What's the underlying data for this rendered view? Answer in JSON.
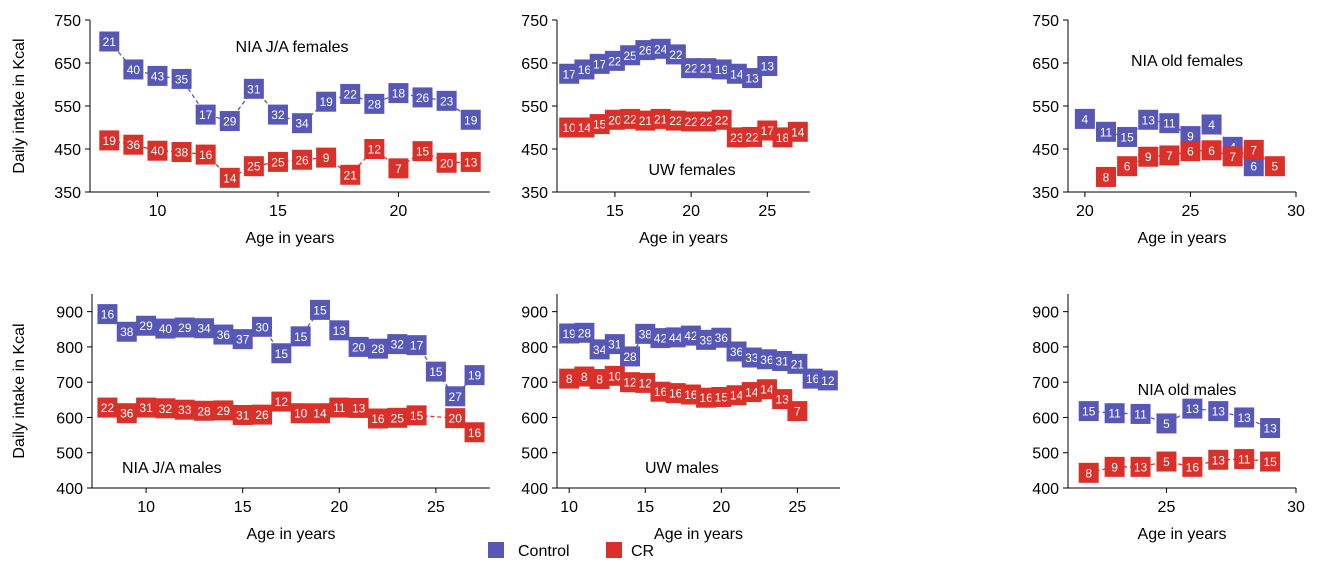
{
  "colors": {
    "control": "#5757b5",
    "cr": "#d9302a",
    "axis": "#000000"
  },
  "legend": {
    "control": "Control",
    "cr": "CR"
  },
  "chart_data": [
    {
      "type": "line",
      "title": "NIA J/A females",
      "xlabel": "Age in years",
      "ylabel": "Daily intake in Kcal",
      "xlim": [
        7.2,
        23.8
      ],
      "ylim": [
        350,
        750
      ],
      "xticks": [
        10,
        15,
        20
      ],
      "yticks": [
        350,
        450,
        550,
        650,
        750
      ],
      "series": [
        {
          "name": "Control",
          "x": [
            8,
            9,
            10,
            11,
            12,
            13,
            14,
            15,
            16,
            17,
            18,
            19,
            20,
            21,
            22,
            23
          ],
          "values": [
            700,
            635,
            620,
            613,
            530,
            515,
            590,
            530,
            510,
            560,
            578,
            555,
            580,
            570,
            562,
            518
          ],
          "labels": [
            "21",
            "40",
            "43",
            "35",
            "17",
            "29",
            "31",
            "32",
            "34",
            "19",
            "22",
            "28",
            "18",
            "26",
            "23",
            "19"
          ]
        },
        {
          "name": "CR",
          "x": [
            8,
            9,
            10,
            11,
            12,
            13,
            14,
            15,
            16,
            17,
            18,
            19,
            20,
            21,
            22,
            23
          ],
          "values": [
            470,
            460,
            446,
            443,
            437,
            383,
            410,
            420,
            425,
            430,
            390,
            450,
            405,
            445,
            418,
            420
          ],
          "labels": [
            "19",
            "36",
            "40",
            "38",
            "16",
            "14",
            "25",
            "25",
            "26",
            "9",
            "21",
            "12",
            "7",
            "15",
            "20",
            "13"
          ]
        }
      ]
    },
    {
      "type": "line",
      "title": "UW females",
      "xlabel": "Age in years",
      "ylabel": "",
      "xlim": [
        11.2,
        27.8
      ],
      "ylim": [
        350,
        750
      ],
      "xticks": [
        15,
        20,
        25
      ],
      "yticks": [
        350,
        450,
        550,
        650,
        750
      ],
      "series": [
        {
          "name": "Control",
          "x": [
            12,
            13,
            14,
            15,
            16,
            17,
            18,
            19,
            20,
            21,
            22,
            23,
            24,
            25
          ],
          "values": [
            625,
            635,
            648,
            655,
            668,
            680,
            683,
            670,
            638,
            638,
            635,
            625,
            615,
            643
          ],
          "labels": [
            "17",
            "16",
            "17",
            "22",
            "25",
            "26",
            "24",
            "22",
            "22",
            "21",
            "19",
            "14",
            "13",
            "13"
          ]
        },
        {
          "name": "CR",
          "x": [
            12,
            13,
            14,
            15,
            16,
            17,
            18,
            19,
            20,
            21,
            22,
            23,
            24,
            25,
            26,
            27
          ],
          "values": [
            500,
            500,
            508,
            518,
            520,
            516,
            520,
            516,
            514,
            514,
            518,
            477,
            478,
            493,
            477,
            490
          ],
          "labels": [
            "10",
            "14",
            "15",
            "20",
            "22",
            "21",
            "21",
            "22",
            "22",
            "22",
            "22",
            "23",
            "22",
            "17",
            "18",
            "14"
          ]
        }
      ]
    },
    {
      "type": "line",
      "title": "NIA old females",
      "xlabel": "Age in years",
      "ylabel": "",
      "xlim": [
        19.2,
        30
      ],
      "ylim": [
        350,
        750
      ],
      "xticks": [
        20,
        25,
        30
      ],
      "yticks": [
        350,
        450,
        550,
        650,
        750
      ],
      "series": [
        {
          "name": "Control",
          "x": [
            20,
            21,
            22,
            23,
            24,
            25,
            26,
            27,
            28
          ],
          "values": [
            520,
            490,
            478,
            518,
            510,
            480,
            507,
            455,
            410
          ],
          "labels": [
            "4",
            "11",
            "15",
            "13",
            "11",
            "9",
            "4",
            "4",
            "6"
          ]
        },
        {
          "name": "CR",
          "x": [
            21,
            22,
            23,
            24,
            25,
            26,
            27,
            28,
            29
          ],
          "values": [
            385,
            410,
            432,
            435,
            445,
            447,
            433,
            448,
            410
          ],
          "labels": [
            "8",
            "6",
            "9",
            "7",
            "6",
            "6",
            "7",
            "7",
            "5"
          ]
        }
      ]
    },
    {
      "type": "line",
      "title": "NIA J/A males",
      "xlabel": "Age in years",
      "ylabel": "Daily intake in Kcal",
      "xlim": [
        7.2,
        27.8
      ],
      "ylim": [
        400,
        950
      ],
      "xticks": [
        10,
        15,
        20,
        25
      ],
      "yticks": [
        400,
        500,
        600,
        700,
        800,
        900
      ],
      "series": [
        {
          "name": "Control",
          "x": [
            8,
            9,
            10,
            11,
            12,
            13,
            14,
            15,
            16,
            17,
            18,
            19,
            20,
            21,
            22,
            23,
            24,
            25,
            26,
            27
          ],
          "values": [
            893,
            843,
            860,
            852,
            855,
            853,
            835,
            822,
            857,
            782,
            830,
            905,
            847,
            800,
            795,
            808,
            805,
            730,
            660,
            720
          ],
          "labels": [
            "16",
            "38",
            "29",
            "40",
            "29",
            "34",
            "36",
            "37",
            "30",
            "15",
            "15",
            "15",
            "13",
            "20",
            "28",
            "32",
            "17",
            "15",
            "27",
            "19"
          ]
        },
        {
          "name": "CR",
          "x": [
            8,
            9,
            10,
            11,
            12,
            13,
            14,
            15,
            16,
            17,
            18,
            19,
            20,
            21,
            22,
            23,
            24,
            25,
            26,
            27
          ],
          "values": [
            628,
            612,
            628,
            626,
            622,
            619,
            620,
            607,
            608,
            645,
            612,
            612,
            628,
            627,
            597,
            599,
            606,
            null,
            598,
            558
          ],
          "labels": [
            "22",
            "36",
            "31",
            "32",
            "33",
            "28",
            "29",
            "31",
            "26",
            "12",
            "10",
            "14",
            "11",
            "13",
            "16",
            "25",
            "15",
            "",
            "20",
            "16"
          ]
        }
      ]
    },
    {
      "type": "line",
      "title": "UW males",
      "xlabel": "Age in years",
      "ylabel": "",
      "xlim": [
        9.2,
        27.8
      ],
      "ylim": [
        400,
        950
      ],
      "xticks": [
        10,
        15,
        20,
        25
      ],
      "yticks": [
        400,
        500,
        600,
        700,
        800,
        900
      ],
      "series": [
        {
          "name": "Control",
          "x": [
            10,
            11,
            12,
            13,
            14,
            15,
            16,
            17,
            18,
            19,
            20,
            21,
            22,
            23,
            24,
            25,
            26,
            27
          ],
          "values": [
            838,
            840,
            793,
            808,
            773,
            837,
            825,
            827,
            832,
            820,
            826,
            787,
            770,
            765,
            760,
            752,
            710,
            705
          ],
          "labels": [
            "19",
            "28",
            "34",
            "31",
            "28",
            "38",
            "42",
            "44",
            "42",
            "39",
            "36",
            "36",
            "33",
            "36",
            "31",
            "21",
            "16",
            "12"
          ]
        },
        {
          "name": "CR",
          "x": [
            10,
            11,
            12,
            13,
            14,
            15,
            16,
            17,
            18,
            19,
            20,
            21,
            22,
            23,
            24,
            25
          ],
          "values": [
            710,
            716,
            709,
            718,
            700,
            698,
            673,
            669,
            665,
            656,
            658,
            663,
            672,
            680,
            652,
            618
          ],
          "labels": [
            "8",
            "8",
            "8",
            "10",
            "12",
            "12",
            "16",
            "16",
            "16",
            "16",
            "15",
            "14",
            "14",
            "14",
            "13",
            "7"
          ]
        }
      ]
    },
    {
      "type": "line",
      "title": "NIA old males",
      "xlabel": "Age in years",
      "ylabel": "",
      "xlim": [
        21.2,
        30
      ],
      "ylim": [
        400,
        950
      ],
      "xticks": [
        25,
        30
      ],
      "yticks": [
        400,
        500,
        600,
        700,
        800,
        900
      ],
      "series": [
        {
          "name": "Control",
          "x": [
            22,
            23,
            24,
            25,
            26,
            27,
            28,
            29
          ],
          "values": [
            618,
            612,
            610,
            583,
            625,
            618,
            600,
            570
          ],
          "labels": [
            "15",
            "11",
            "11",
            "5",
            "13",
            "13",
            "13",
            "13"
          ]
        },
        {
          "name": "CR",
          "x": [
            22,
            23,
            24,
            25,
            26,
            27,
            28,
            29
          ],
          "values": [
            443,
            460,
            460,
            475,
            460,
            480,
            482,
            475
          ],
          "labels": [
            "8",
            "9",
            "13",
            "5",
            "16",
            "13",
            "11",
            "15"
          ]
        }
      ]
    }
  ]
}
